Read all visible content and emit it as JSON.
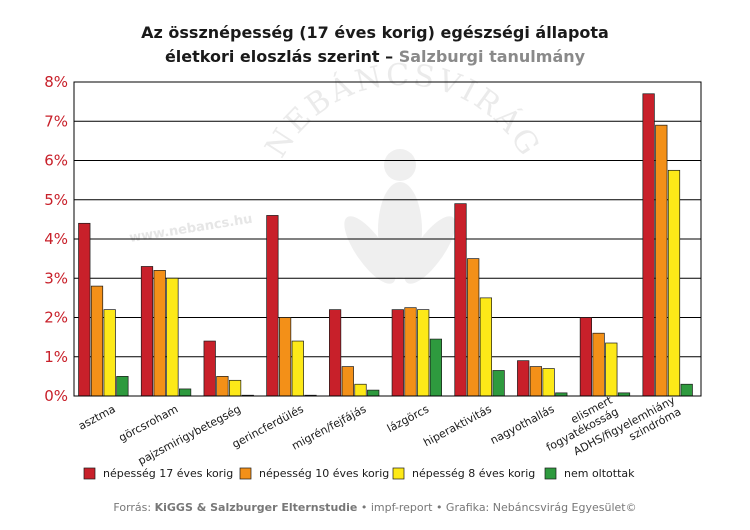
{
  "title": {
    "line1": "Az össznépesség (17 éves korig) egészségi állapota",
    "line2_main": "életkori eloszlás szerint – ",
    "line2_accent": "Salzburgi tanulmány"
  },
  "watermark": {
    "arc_text": "NEBÁNCSVIRÁG",
    "url": "www.nebancs.hu"
  },
  "colors": {
    "axis_labels": "#c8202a",
    "series": [
      "#c8202a",
      "#f39018",
      "#fde918",
      "#2e9a3e"
    ]
  },
  "chart_data": {
    "type": "bar",
    "categories": [
      "asztma",
      "görcsroham",
      "pajzsmirigybetegség",
      "gerincferdülés",
      "migrén/fejfájás",
      "lázgörcs",
      "hiperaktivitás",
      "nagyothallás",
      "elismert fogyatékosság",
      "ADHS/figyelemhiány szindróma"
    ],
    "category_lines": [
      [
        "asztma"
      ],
      [
        "görcsroham"
      ],
      [
        "pajzsmirigybetegség"
      ],
      [
        "gerincferdülés"
      ],
      [
        "migrén/fejfájás"
      ],
      [
        "lázgörcs"
      ],
      [
        "hiperaktivitás"
      ],
      [
        "nagyothallás"
      ],
      [
        "elismert",
        "fogyatékosság"
      ],
      [
        "ADHS/figyelemhiány",
        "szindróma"
      ]
    ],
    "series": [
      {
        "name": "népesség 17 éves korig",
        "color": "#c8202a",
        "values": [
          4.4,
          3.3,
          1.4,
          4.6,
          2.2,
          2.2,
          4.9,
          0.9,
          2.0,
          7.7
        ]
      },
      {
        "name": "népesség 10 éves korig",
        "color": "#f39018",
        "values": [
          2.8,
          3.2,
          0.5,
          2.0,
          0.75,
          2.25,
          3.5,
          0.75,
          1.6,
          6.9
        ]
      },
      {
        "name": "népesség 8 éves korig",
        "color": "#fde918",
        "values": [
          2.2,
          3.0,
          0.4,
          1.4,
          0.3,
          2.2,
          2.5,
          0.7,
          1.35,
          5.75
        ]
      },
      {
        "name": "nem oltottak",
        "color": "#2e9a3e",
        "values": [
          0.5,
          0.18,
          0.02,
          0.02,
          0.15,
          1.45,
          0.65,
          0.08,
          0.08,
          0.3
        ]
      }
    ],
    "ylim": [
      0,
      8
    ],
    "yticks": [
      "0%",
      "1%",
      "2%",
      "3%",
      "4%",
      "5%",
      "6%",
      "7%",
      "8%"
    ],
    "grid": true,
    "legend_position": "bottom"
  },
  "source": {
    "prefix": "Forrás: ",
    "strong": "KiGGS & Salzburger Elternstudie",
    "rest": " • impf-report • Grafika: Nebáncsvirág Egyesület©"
  }
}
